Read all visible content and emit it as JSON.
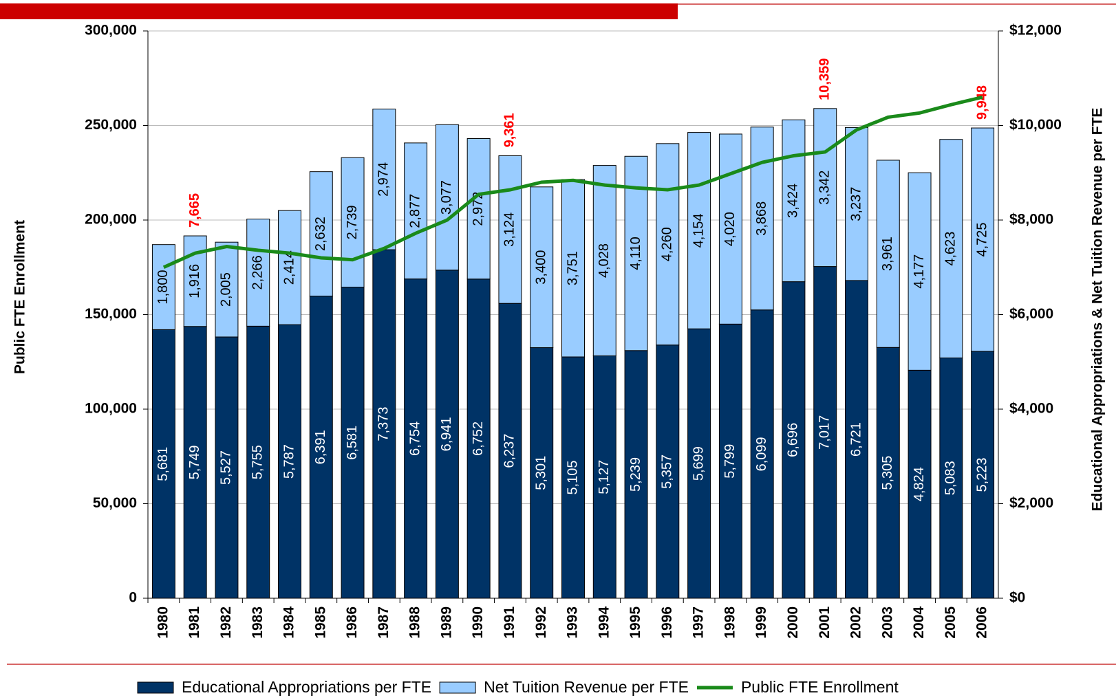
{
  "chart_data": {
    "type": "bar",
    "categories": [
      "1980",
      "1981",
      "1982",
      "1983",
      "1984",
      "1985",
      "1986",
      "1987",
      "1988",
      "1989",
      "1990",
      "1991",
      "1992",
      "1993",
      "1994",
      "1995",
      "1996",
      "1997",
      "1998",
      "1999",
      "2000",
      "2001",
      "2002",
      "2003",
      "2004",
      "2005",
      "2006"
    ],
    "ylabel": "Public FTE Enrollment",
    "y2label": "Educational Appropriations & Net Tuition Revenue per FTE",
    "ylim": [
      0,
      300000
    ],
    "yticks": [
      0,
      {
        "value": 50000,
        "label": "50,000"
      },
      {
        "value": 100000,
        "label": "100,000"
      },
      {
        "value": 150000,
        "label": "150,000"
      },
      {
        "value": 200000,
        "label": "200,000"
      },
      {
        "value": 250000,
        "label": "250,000"
      },
      {
        "value": 300000,
        "label": "300,000"
      }
    ],
    "y2lim": [
      0,
      12000
    ],
    "y2ticks": [
      {
        "value": 0,
        "label": "$0"
      },
      {
        "value": 2000,
        "label": "$2,000"
      },
      {
        "value": 4000,
        "label": "$4,000"
      },
      {
        "value": 6000,
        "label": "$6,000"
      },
      {
        "value": 8000,
        "label": "$8,000"
      },
      {
        "value": 10000,
        "label": "$10,000"
      },
      {
        "value": 12000,
        "label": "$12,000"
      }
    ],
    "grid": true,
    "series": [
      {
        "name": "Educational Appropriations per FTE",
        "color": "#003366",
        "axis": "y2",
        "kind": "bar",
        "values": [
          5681,
          5749,
          5527,
          5755,
          5787,
          6391,
          6581,
          7373,
          6754,
          6941,
          6752,
          6237,
          5301,
          5105,
          5127,
          5239,
          5357,
          5699,
          5799,
          6099,
          6696,
          7017,
          6721,
          5305,
          4824,
          5083,
          5223
        ],
        "value_labels": [
          "5,681",
          "5,749",
          "5,527",
          "5,755",
          "5,787",
          "6,391",
          "6,581",
          "7,373",
          "6,754",
          "6,941",
          "6,752",
          "6,237",
          "5,301",
          "5,105",
          "5,127",
          "5,239",
          "5,357",
          "5,699",
          "5,799",
          "6,099",
          "6,696",
          "7,017",
          "6,721",
          "5,305",
          "4,824",
          "5,083",
          "5,223"
        ]
      },
      {
        "name": "Net Tuition Revenue per FTE",
        "color": "#99ccff",
        "axis": "y2",
        "kind": "bar",
        "values": [
          1800,
          1916,
          2005,
          2266,
          2414,
          2632,
          2739,
          2974,
          2877,
          3077,
          2972,
          3124,
          3400,
          3751,
          4028,
          4110,
          4260,
          4154,
          4020,
          3868,
          3424,
          3342,
          3237,
          3961,
          4177,
          4623,
          4725
        ],
        "value_labels": [
          "1,800",
          "1,916",
          "2,005",
          "2,266",
          "2,414",
          "2,632",
          "2,739",
          "2,974",
          "2,877",
          "3,077",
          "2,972",
          "3,124",
          "3,400",
          "3,751",
          "4,028",
          "4,110",
          "4,260",
          "4,154",
          "4,020",
          "3,868",
          "3,424",
          "3,342",
          "3,237",
          "3,961",
          "4,177",
          "4,623",
          "4,725"
        ]
      },
      {
        "name": "Public FTE Enrollment",
        "color": "#1a8a1a",
        "axis": "y",
        "kind": "line",
        "values": [
          175000,
          182500,
          186000,
          184000,
          182500,
          180000,
          179000,
          185000,
          193000,
          200000,
          213600,
          216000,
          220000,
          221000,
          218500,
          217000,
          216000,
          218500,
          224500,
          230500,
          234000,
          236000,
          247700,
          254400,
          256600,
          261000,
          265000
        ]
      }
    ],
    "annotations": [
      {
        "category": "1981",
        "text": "7,665"
      },
      {
        "category": "1991",
        "text": "9,361"
      },
      {
        "category": "2001",
        "text": "10,359"
      },
      {
        "category": "2006",
        "text": "9,948"
      }
    ]
  }
}
